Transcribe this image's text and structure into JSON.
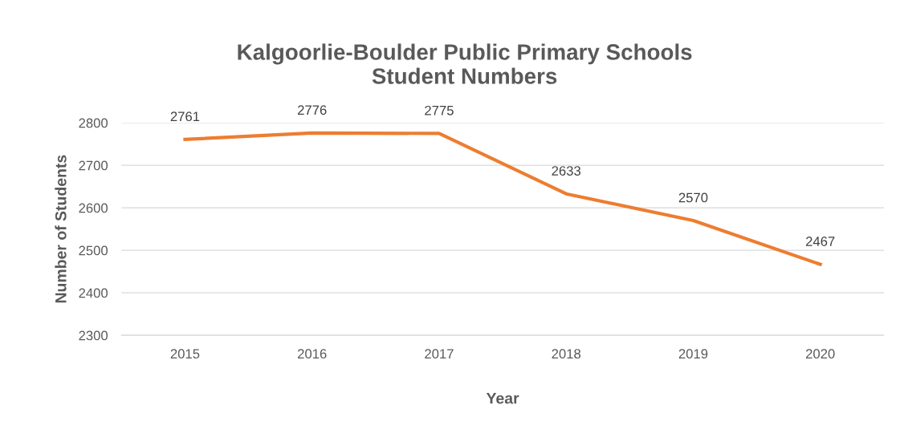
{
  "chart_data": {
    "type": "line",
    "title": "Kalgoorlie-Boulder Public Primary Schools\nStudent Numbers",
    "xlabel": "Year",
    "ylabel": "Number of Students",
    "categories": [
      "2015",
      "2016",
      "2017",
      "2018",
      "2019",
      "2020"
    ],
    "series": [
      {
        "color": "#ed7d31",
        "values": [
          2761,
          2776,
          2775,
          2633,
          2570,
          2467
        ]
      }
    ],
    "ylim": [
      2300,
      2800
    ],
    "yticks": [
      2300,
      2400,
      2500,
      2600,
      2700,
      2800
    ],
    "grid": "y",
    "data_labels": true,
    "marker": "none",
    "line_style": "solid"
  }
}
